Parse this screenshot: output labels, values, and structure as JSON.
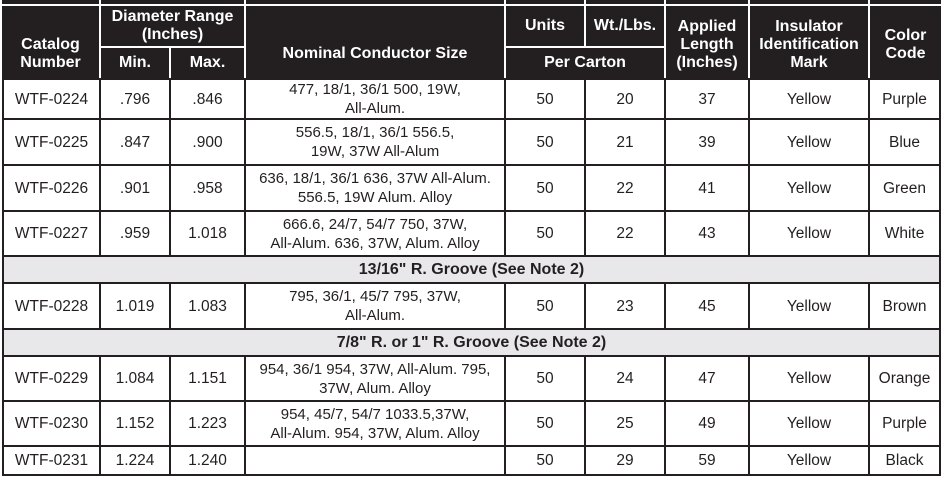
{
  "header": {
    "catalog": "Catalog Number",
    "diameter_range": "Diameter Range (Inches)",
    "min": "Min.",
    "max": "Max.",
    "conductor": "Nominal Conductor Size",
    "units": "Units",
    "wt": "Wt./Lbs.",
    "per_carton": "Per Carton",
    "applied": "Applied Length (Inches)",
    "insulator": "Insulator Identification Mark",
    "color": "Color Code"
  },
  "sections": [
    {
      "label": "13/16\" R. Groove (See Note 2)"
    },
    {
      "label": "7/8\" R. or 1\" R. Groove (See Note 2)"
    }
  ],
  "rows": [
    {
      "catalog": "WTF-0224",
      "min": ".796",
      "max": ".846",
      "conductor": "477, 18/1, 36/1 500, 19W,\nAll-Alum.",
      "units": "50",
      "wt": "20",
      "applied": "37",
      "insulator": "Yellow",
      "color": "Purple"
    },
    {
      "catalog": "WTF-0225",
      "min": ".847",
      "max": ".900",
      "conductor": "556.5, 18/1, 36/1 556.5,\n19W, 37W All-Alum",
      "units": "50",
      "wt": "21",
      "applied": "39",
      "insulator": "Yellow",
      "color": "Blue"
    },
    {
      "catalog": "WTF-0226",
      "min": ".901",
      "max": ".958",
      "conductor": "636, 18/1, 36/1 636, 37W All-Alum.\n556.5, 19W Alum. Alloy",
      "units": "50",
      "wt": "22",
      "applied": "41",
      "insulator": "Yellow",
      "color": "Green"
    },
    {
      "catalog": "WTF-0227",
      "min": ".959",
      "max": "1.018",
      "conductor": "666.6, 24/7, 54/7 750, 37W,\nAll-Alum. 636, 37W, Alum. Alloy",
      "units": "50",
      "wt": "22",
      "applied": "43",
      "insulator": "Yellow",
      "color": "White"
    },
    {
      "catalog": "WTF-0228",
      "min": "1.019",
      "max": "1.083",
      "conductor": "795, 36/1, 45/7 795, 37W,\nAll-Alum.",
      "units": "50",
      "wt": "23",
      "applied": "45",
      "insulator": "Yellow",
      "color": "Brown"
    },
    {
      "catalog": "WTF-0229",
      "min": "1.084",
      "max": "1.151",
      "conductor": "954, 36/1 954, 37W, All-Alum. 795,\n37W, Alum. Alloy",
      "units": "50",
      "wt": "24",
      "applied": "47",
      "insulator": "Yellow",
      "color": "Orange"
    },
    {
      "catalog": "WTF-0230",
      "min": "1.152",
      "max": "1.223",
      "conductor": "954, 45/7, 54/7 1033.5,37W,\nAll-Alum. 954, 37W, Alum. Alloy",
      "units": "50",
      "wt": "25",
      "applied": "49",
      "insulator": "Yellow",
      "color": "Purple"
    },
    {
      "catalog": "WTF-0231",
      "min": "1.224",
      "max": "1.240",
      "conductor": "",
      "units": "50",
      "wt": "29",
      "applied": "59",
      "insulator": "Yellow",
      "color": "Black"
    }
  ]
}
